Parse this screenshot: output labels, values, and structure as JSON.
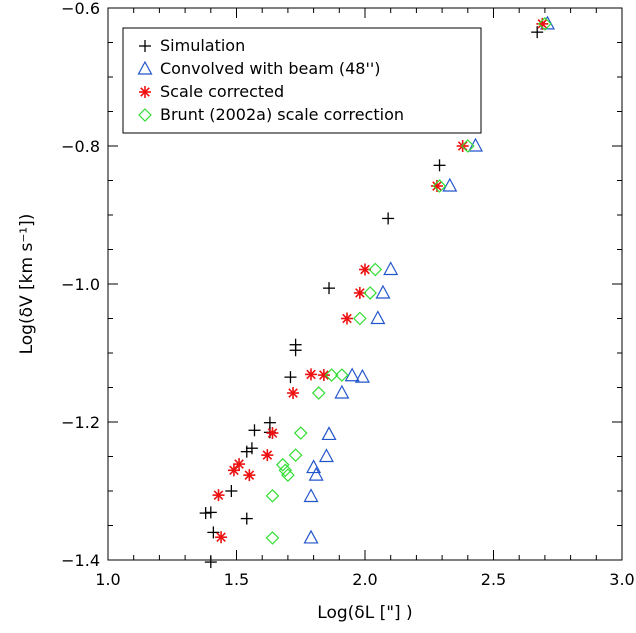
{
  "chart_data": {
    "type": "scatter",
    "xlabel": "Log(δL [\"] )",
    "ylabel": "Log(δV [km s⁻¹])",
    "xlim": [
      1.0,
      3.0
    ],
    "ylim": [
      -1.4,
      -0.6
    ],
    "x_ticks": [
      "1.0",
      "1.5",
      "2.0",
      "2.5",
      "3.0"
    ],
    "y_ticks": [
      "−1.4",
      "−1.2",
      "−1.0",
      "−0.8",
      "−0.6"
    ],
    "x_tick_values": [
      1.0,
      1.5,
      2.0,
      2.5,
      3.0
    ],
    "y_tick_values": [
      -1.4,
      -1.2,
      -1.0,
      -0.8,
      -0.6
    ],
    "grid": false,
    "legend_position": "top-left",
    "series": [
      {
        "name": "Simulation",
        "marker": "plus",
        "color": "#000000",
        "points": [
          [
            2.67,
            -0.635
          ],
          [
            2.29,
            -0.828
          ],
          [
            2.09,
            -0.905
          ],
          [
            1.86,
            -1.006
          ],
          [
            1.73,
            -1.088
          ],
          [
            1.73,
            -1.096
          ],
          [
            1.71,
            -1.135
          ],
          [
            1.63,
            -1.201
          ],
          [
            1.63,
            -1.215
          ],
          [
            1.57,
            -1.212
          ],
          [
            1.56,
            -1.238
          ],
          [
            1.54,
            -1.243
          ],
          [
            1.48,
            -1.3
          ],
          [
            1.54,
            -1.34
          ],
          [
            1.38,
            -1.332
          ],
          [
            1.4,
            -1.331
          ],
          [
            1.41,
            -1.36
          ],
          [
            1.4,
            -1.403
          ]
        ]
      },
      {
        "name": "Convolved with beam (48'')",
        "marker": "triangle",
        "color": "#2255cc",
        "points": [
          [
            2.71,
            -0.623
          ],
          [
            2.43,
            -0.8
          ],
          [
            2.33,
            -0.858
          ],
          [
            2.1,
            -0.979
          ],
          [
            2.07,
            -1.013
          ],
          [
            2.05,
            -1.05
          ],
          [
            1.95,
            -1.133
          ],
          [
            1.99,
            -1.135
          ],
          [
            1.91,
            -1.158
          ],
          [
            1.86,
            -1.218
          ],
          [
            1.85,
            -1.25
          ],
          [
            1.8,
            -1.266
          ],
          [
            1.81,
            -1.277
          ],
          [
            1.79,
            -1.308
          ],
          [
            1.79,
            -1.368
          ]
        ]
      },
      {
        "name": "Scale corrected",
        "marker": "asterisk",
        "color": "#ee1111",
        "points": [
          [
            2.69,
            -0.623
          ],
          [
            2.38,
            -0.8
          ],
          [
            2.28,
            -0.858
          ],
          [
            2.0,
            -0.979
          ],
          [
            1.98,
            -1.013
          ],
          [
            1.93,
            -1.05
          ],
          [
            1.79,
            -1.131
          ],
          [
            1.84,
            -1.132
          ],
          [
            1.72,
            -1.158
          ],
          [
            1.64,
            -1.216
          ],
          [
            1.62,
            -1.248
          ],
          [
            1.51,
            -1.261
          ],
          [
            1.49,
            -1.27
          ],
          [
            1.55,
            -1.277
          ],
          [
            1.43,
            -1.306
          ],
          [
            1.44,
            -1.367
          ]
        ]
      },
      {
        "name": "Brunt (2002a) scale correction",
        "marker": "diamond",
        "color": "#33dd33",
        "points": [
          [
            2.7,
            -0.623
          ],
          [
            2.4,
            -0.8
          ],
          [
            2.29,
            -0.858
          ],
          [
            2.04,
            -0.979
          ],
          [
            2.02,
            -1.013
          ],
          [
            1.98,
            -1.05
          ],
          [
            1.87,
            -1.132
          ],
          [
            1.91,
            -1.132
          ],
          [
            1.82,
            -1.158
          ],
          [
            1.75,
            -1.216
          ],
          [
            1.73,
            -1.248
          ],
          [
            1.68,
            -1.262
          ],
          [
            1.69,
            -1.27
          ],
          [
            1.7,
            -1.277
          ],
          [
            1.64,
            -1.307
          ],
          [
            1.64,
            -1.368
          ]
        ]
      }
    ]
  }
}
